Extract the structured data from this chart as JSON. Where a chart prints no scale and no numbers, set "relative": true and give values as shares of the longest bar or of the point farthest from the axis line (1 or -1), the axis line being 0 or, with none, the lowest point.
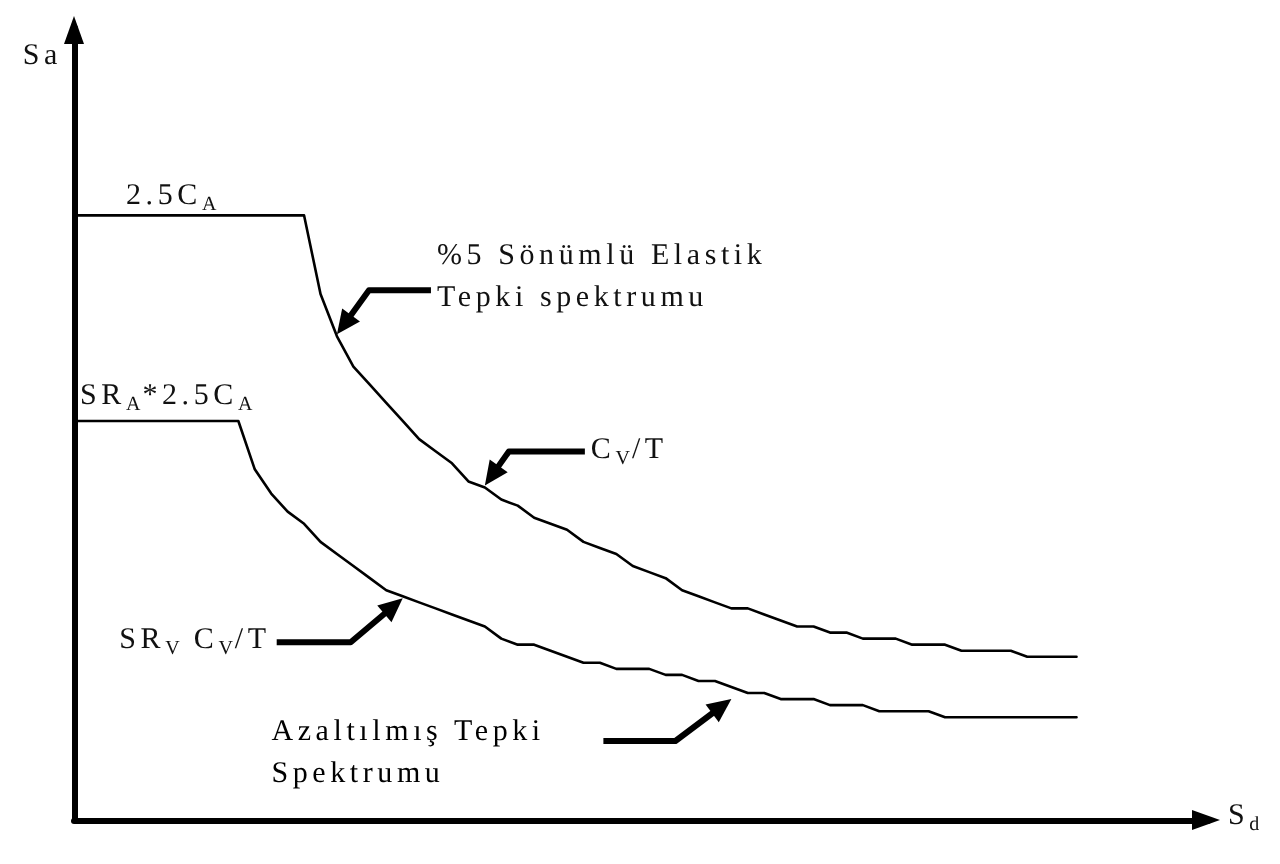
{
  "chart_data": {
    "type": "line",
    "relative": true,
    "xlabel": "S$_{d}$",
    "ylabel": "Sa",
    "categories": [
      null,
      null,
      null,
      null,
      null,
      null,
      null,
      null,
      null,
      null,
      null,
      null,
      null,
      null,
      null,
      null,
      null,
      null,
      null,
      null,
      null,
      null,
      null,
      null,
      null,
      null,
      null,
      null,
      null,
      null,
      null,
      null,
      null,
      null,
      null,
      null,
      null,
      null,
      null,
      null,
      null,
      null,
      null,
      null,
      null,
      null,
      null,
      null,
      null,
      null,
      null,
      null,
      null,
      null,
      null,
      null,
      null,
      null,
      null,
      null,
      null,
      null,
      null,
      null,
      null,
      null,
      null,
      null,
      null,
      null
    ],
    "series": [
      {
        "color": "#000000",
        "values": [
          1,
          1,
          1,
          1,
          1,
          1,
          1,
          1,
          1,
          1,
          1,
          1,
          1,
          1,
          1,
          0.87,
          0.8,
          0.75,
          0.72,
          0.69,
          0.66,
          0.63,
          0.61,
          0.59,
          0.56,
          0.55,
          0.53,
          0.52,
          0.5,
          0.49,
          0.48,
          0.46,
          0.45,
          0.44,
          0.42,
          0.41,
          0.4,
          0.38,
          0.37,
          0.36,
          0.35,
          0.35,
          0.34,
          0.33,
          0.32,
          0.32,
          0.31,
          0.31,
          0.3,
          0.3,
          0.3,
          0.29,
          0.29,
          0.29,
          0.28,
          0.28,
          0.28,
          0.28,
          0.27,
          0.27,
          0.27,
          0.27,
          null,
          null,
          null,
          null,
          null,
          null,
          null,
          null
        ]
      },
      {
        "name": "Azaltılmış Tepki Spektrumu",
        "color": "#000000",
        "values": [
          0.66,
          0.66,
          0.66,
          0.66,
          0.66,
          0.66,
          0.66,
          0.66,
          0.66,
          0.66,
          0.66,
          0.58,
          0.54,
          0.51,
          0.49,
          0.46,
          0.44,
          0.42,
          0.4,
          0.38,
          0.37,
          0.36,
          0.35,
          0.34,
          0.33,
          0.32,
          0.3,
          0.29,
          0.29,
          0.28,
          0.27,
          0.26,
          0.26,
          0.25,
          0.25,
          0.25,
          0.24,
          0.24,
          0.23,
          0.23,
          0.22,
          0.21,
          0.21,
          0.2,
          0.2,
          0.2,
          0.19,
          0.19,
          0.19,
          0.18,
          0.18,
          0.18,
          0.18,
          0.17,
          0.17,
          0.17,
          0.17,
          0.17,
          0.17,
          0.17,
          0.17,
          0.17,
          null,
          null,
          null,
          null,
          null,
          null,
          null,
          null
        ]
      }
    ],
    "annotations": [
      "2.5C$_{A}$",
      "%5 Sönümlü Elastik Tepki spektrumu",
      "SR$_{A}$*2.5C$_{A}$",
      "C$_{V}$/T",
      "SR$_{V}$ C$_{V}$/T"
    ]
  }
}
